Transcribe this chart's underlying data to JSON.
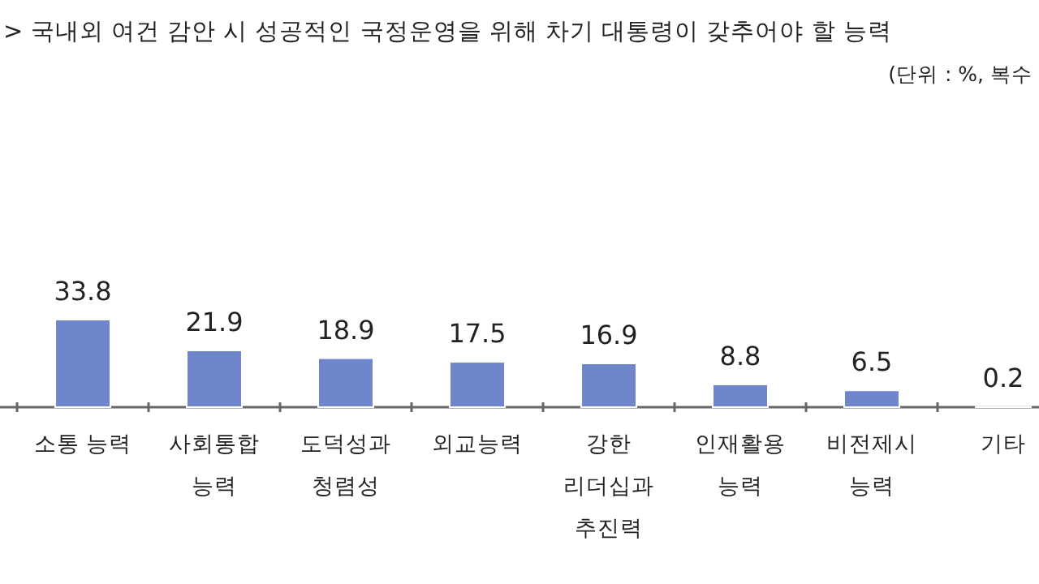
{
  "chart_data": {
    "type": "bar",
    "title": "> 국내외 여건 감안 시 성공적인 국정운영을 위해 차기 대통령이 갖추어야 할 능력",
    "subtitle": "(단위 : %, 복수",
    "categories": [
      "소통 능력",
      "사회통합\n능력",
      "도덕성과\n청렴성",
      "외교능력",
      "강한\n리더십과\n추진력",
      "인재활용\n능력",
      "비전제시\n능력",
      "기타"
    ],
    "values": [
      33.8,
      21.9,
      18.9,
      17.5,
      16.9,
      8.8,
      6.5,
      0.2
    ],
    "color": "#6f86cc",
    "data_labels": true
  }
}
